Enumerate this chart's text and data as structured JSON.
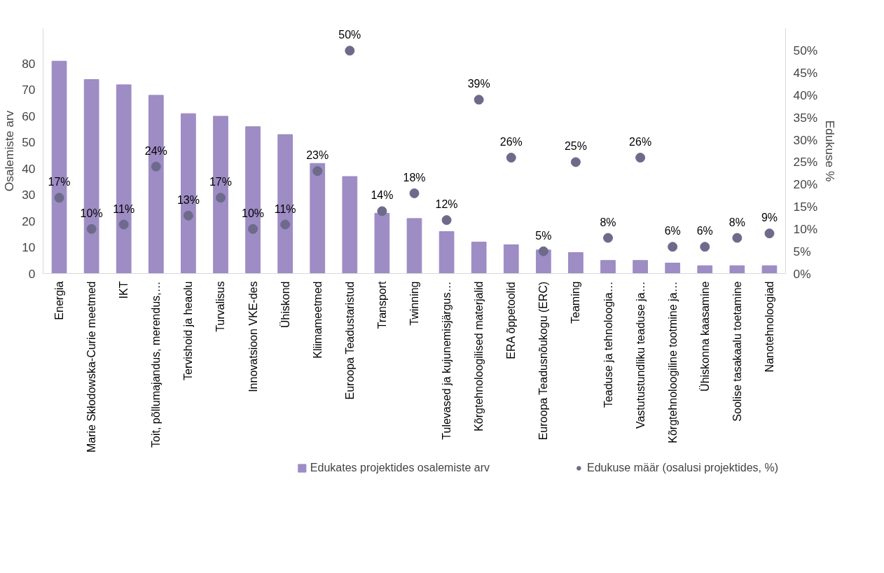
{
  "chart_data": {
    "type": "bar",
    "ylabel": "Osalemiste arv",
    "y2label": "Edukuse %",
    "categories": [
      "Energia",
      "Marie Skłodowska-Curie meetmed",
      "IKT",
      "Toit, põllumajandus, merendus,…",
      "Tervishoid ja heaolu",
      "Turvalisus",
      "Innovatsioon VKE-des",
      "Ühiskond",
      "Kliimameetmed",
      "Euroopa Teadustaristud",
      "Transport",
      "Twinning",
      "Tulevased ja kujunemisjärgus…",
      "Kõrgtehnoloogilised materjalid",
      "ERA õppetoolid",
      "Euroopa Teadusnõukogu (ERC)",
      "Teaming",
      "Teaduse ja tehnoloogia…",
      "Vastutustundliku teaduse ja…",
      "Kõrgtehnoloogiline tootmine ja…",
      "Ühiskonna kaasamine",
      "Soolise tasakaalu toetamine",
      "Nanotehnoloogiad"
    ],
    "series": [
      {
        "name": "Edukates projektides osalemiste arv",
        "color": "#9e8cc4",
        "values": [
          81,
          74,
          72,
          68,
          61,
          60,
          56,
          53,
          42,
          37,
          23,
          21,
          16,
          12,
          11,
          9,
          8,
          5,
          5,
          4,
          3,
          3,
          3
        ]
      },
      {
        "name": "Edukuse määr (osalusi projektides, %)",
        "type": "scatter",
        "axis": "y2",
        "color": "#6e6a8b",
        "x": [
          "Energia",
          "Marie Skłodowska-Curie meetmed",
          "IKT",
          "Toit, põllumajandus, merendus,…",
          "Tervishoid ja heaolu",
          "Turvalisus",
          "Innovatsioon VKE-des",
          "Ühiskond",
          "Kliimameetmed",
          "Euroopa Teadustaristud",
          "Transport",
          "Twinning",
          "Tulevased ja kujunemisjärgus…",
          "Kõrgtehnoloogilised materjalid",
          "ERA õppetoolid",
          "Euroopa Teadusnõukogu (ERC)",
          "Teaming",
          "Teaduse ja tehnoloogia…",
          "Vastutustundliku teaduse ja…",
          "Kõrgtehnoloogiline tootmine ja…",
          "Ühiskonna kaasamine",
          "Soolise tasakaalu toetamine",
          "Nanotehnoloogiad"
        ],
        "values": [
          17,
          10,
          11,
          24,
          13,
          17,
          10,
          11,
          23,
          50,
          14,
          18,
          12,
          39,
          26,
          5,
          25,
          8,
          26,
          6,
          6,
          8,
          9
        ],
        "value_labels": [
          "17%",
          "10%",
          "11%",
          "24%",
          "13%",
          "17%",
          "10%",
          "11%",
          "23%",
          "50%",
          "14%",
          "18%",
          "12%",
          "39%",
          "26%",
          "5%",
          "25%",
          "8%",
          "26%",
          "6%",
          "6%",
          "8%",
          "9%"
        ]
      }
    ],
    "ylim": [
      0,
      93.5
    ],
    "yticks": [
      0,
      10,
      20,
      30,
      40,
      50,
      60,
      70,
      80
    ],
    "y2lim": [
      0,
      55
    ],
    "y2ticks": [
      {
        "value": 0,
        "label": "0%"
      },
      {
        "value": 5,
        "label": "5%"
      },
      {
        "value": 10,
        "label": "10%"
      },
      {
        "value": 15,
        "label": "15%"
      },
      {
        "value": 20,
        "label": "20%"
      },
      {
        "value": 25,
        "label": "25%"
      },
      {
        "value": 30,
        "label": "30%"
      },
      {
        "value": 35,
        "label": "35%"
      },
      {
        "value": 40,
        "label": "40%"
      },
      {
        "value": 45,
        "label": "45%"
      },
      {
        "value": 50,
        "label": "50%"
      }
    ],
    "marker": "circle",
    "grid": false,
    "legend": "bottom"
  }
}
